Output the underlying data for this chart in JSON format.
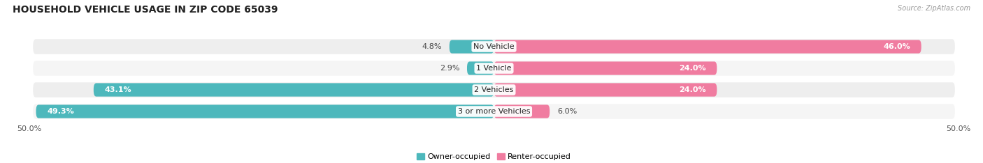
{
  "title": "HOUSEHOLD VEHICLE USAGE IN ZIP CODE 65039",
  "source": "Source: ZipAtlas.com",
  "categories": [
    "No Vehicle",
    "1 Vehicle",
    "2 Vehicles",
    "3 or more Vehicles"
  ],
  "owner_values": [
    4.8,
    2.9,
    43.1,
    49.3
  ],
  "renter_values": [
    46.0,
    24.0,
    24.0,
    6.0
  ],
  "owner_color": "#4db8bc",
  "renter_color": "#f07ca0",
  "row_bg_colors": [
    "#eeeeee",
    "#f5f5f5",
    "#eeeeee",
    "#f5f5f5"
  ],
  "axis_min": -50.0,
  "axis_max": 50.0,
  "axis_tick_labels": [
    "50.0%",
    "50.0%"
  ],
  "legend_owner": "Owner-occupied",
  "legend_renter": "Renter-occupied",
  "title_fontsize": 10,
  "label_fontsize": 8,
  "value_fontsize": 8,
  "bar_height": 0.62
}
